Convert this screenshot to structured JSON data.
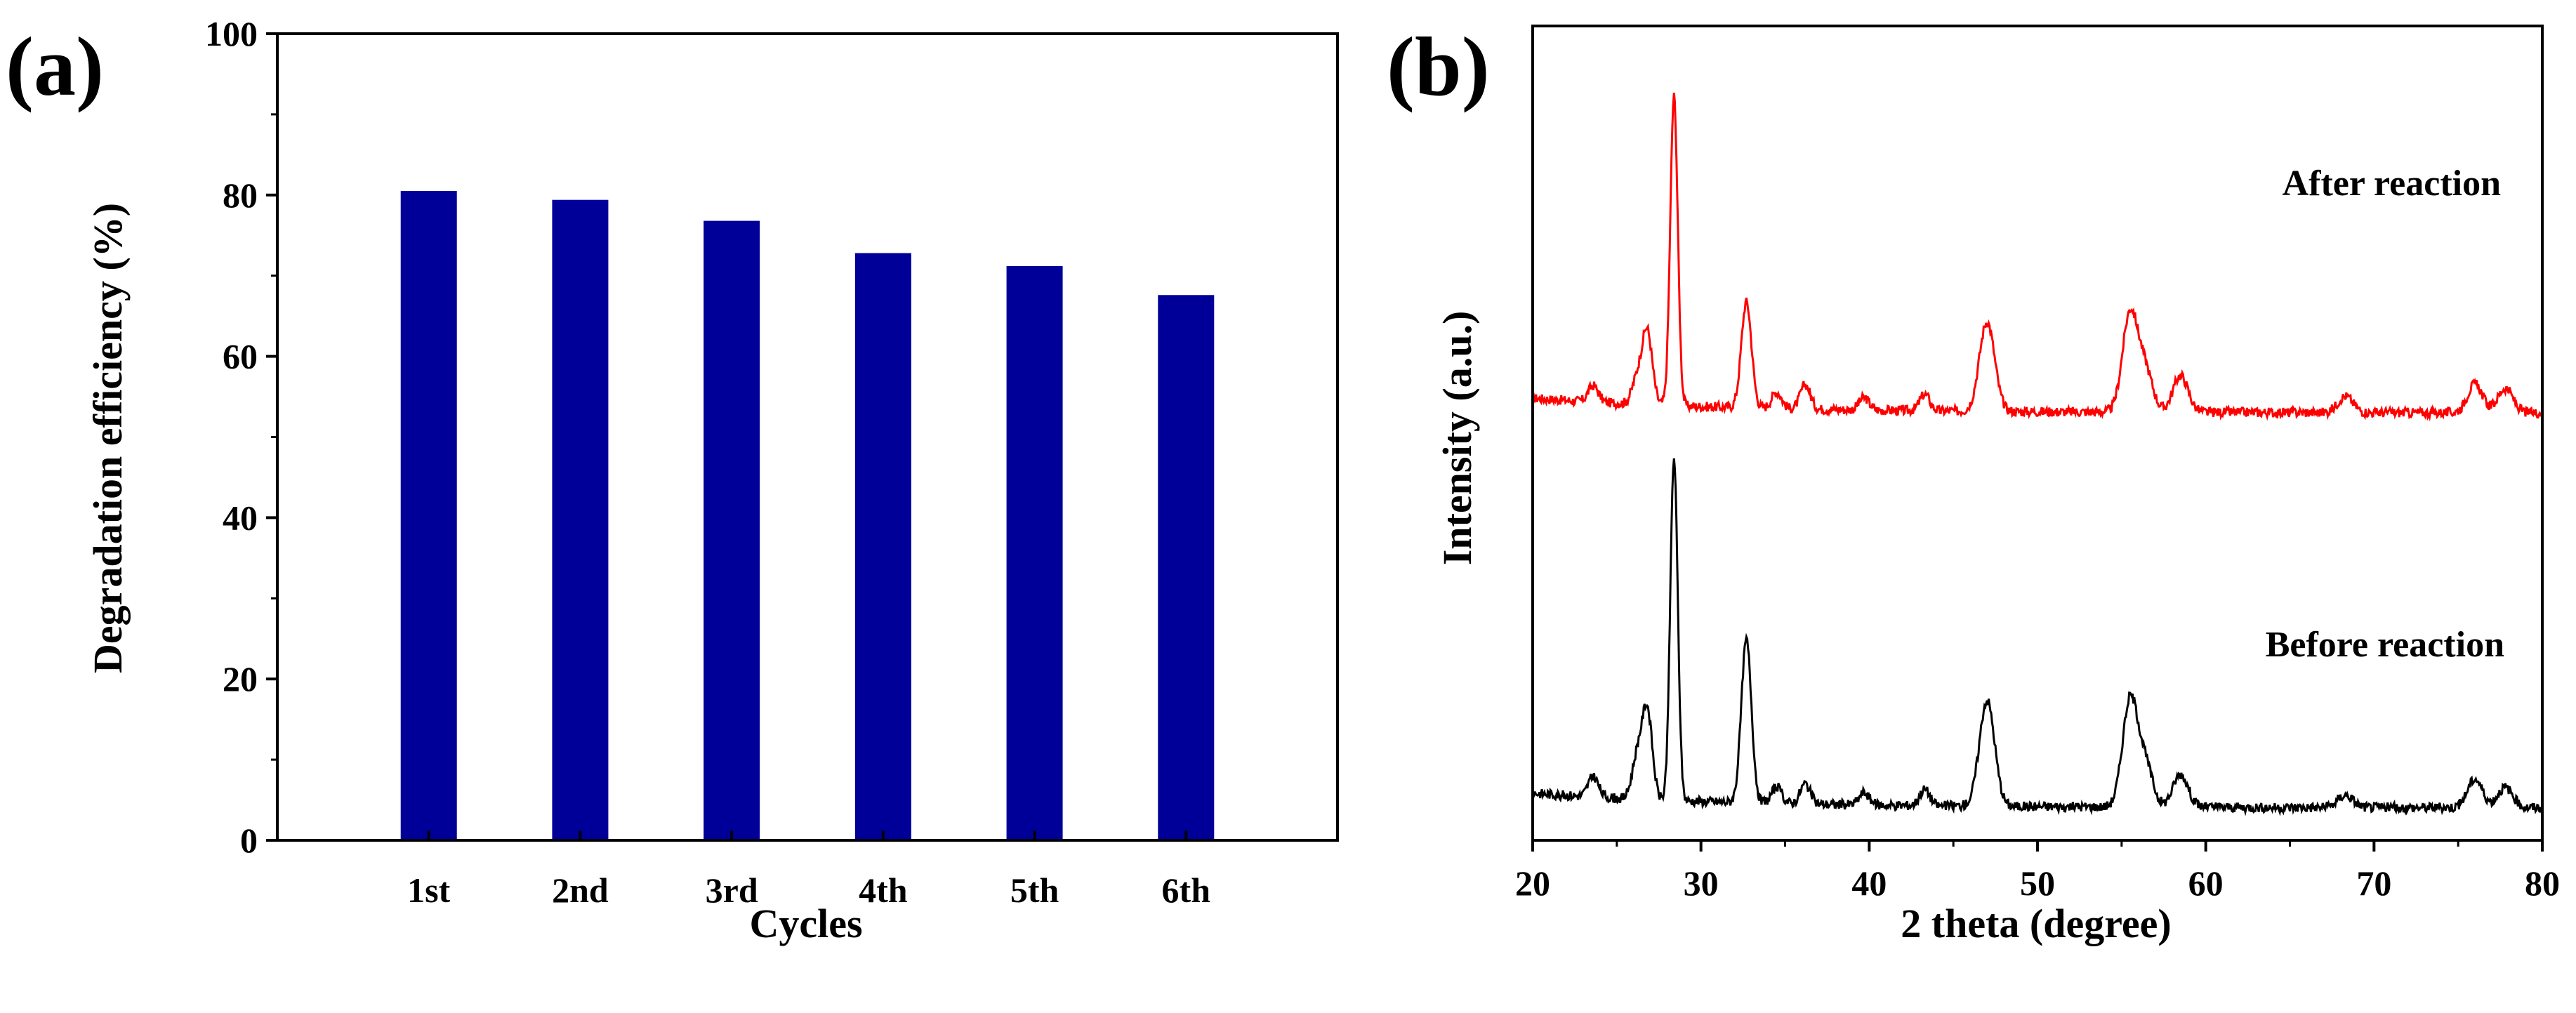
{
  "chart_data": [
    {
      "type": "bar",
      "panel_label": "(a)",
      "xlabel": "Cycles",
      "ylabel": "Degradation efficiency (%)",
      "categories": [
        "1st",
        "2nd",
        "3rd",
        "4th",
        "5th",
        "6th"
      ],
      "values": [
        80.5,
        79.4,
        76.8,
        72.8,
        71.2,
        67.6
      ],
      "ylim": [
        0,
        100
      ],
      "yticks": [
        0,
        20,
        40,
        60,
        80,
        100
      ],
      "ytick_labels": [
        "0",
        "20",
        "40",
        "60",
        "80",
        "100"
      ],
      "grid": false,
      "colors": {
        "bar": "#000099",
        "axis": "#000000"
      }
    },
    {
      "type": "line",
      "panel_label": "(b)",
      "xlabel": "2 theta (degree)",
      "ylabel": "Intensity (a.u.)",
      "xlim": [
        20,
        80
      ],
      "xticks": [
        20,
        30,
        40,
        50,
        60,
        70,
        80
      ],
      "xtick_labels": [
        "20",
        "30",
        "40",
        "50",
        "60",
        "70",
        "80"
      ],
      "ylim": [
        0,
        1
      ],
      "yticks_shown": false,
      "grid": false,
      "series": [
        {
          "name": "After reaction",
          "color": "#ff0000",
          "baseline": 0.525,
          "peaks": [
            [
              23.6,
              0.02
            ],
            [
              26.2,
              0.03
            ],
            [
              26.8,
              0.09
            ],
            [
              28.4,
              0.38
            ],
            [
              32.7,
              0.13
            ],
            [
              34.5,
              0.02
            ],
            [
              36.2,
              0.03
            ],
            [
              39.7,
              0.015
            ],
            [
              43.3,
              0.02
            ],
            [
              47.0,
              0.11
            ],
            [
              55.5,
              0.12
            ],
            [
              56.4,
              0.05
            ],
            [
              58.5,
              0.045
            ],
            [
              68.3,
              0.02
            ],
            [
              76.0,
              0.035
            ],
            [
              77.8,
              0.03
            ]
          ]
        },
        {
          "name": "Before reaction",
          "color": "#000000",
          "baseline": 0.04,
          "peaks": [
            [
              23.6,
              0.025
            ],
            [
              26.2,
              0.05
            ],
            [
              26.8,
              0.11
            ],
            [
              28.4,
              0.42
            ],
            [
              32.7,
              0.2
            ],
            [
              34.5,
              0.02
            ],
            [
              36.2,
              0.025
            ],
            [
              39.7,
              0.015
            ],
            [
              43.3,
              0.02
            ],
            [
              47.0,
              0.13
            ],
            [
              55.5,
              0.13
            ],
            [
              56.4,
              0.05
            ],
            [
              58.5,
              0.04
            ],
            [
              68.3,
              0.015
            ],
            [
              76.0,
              0.035
            ],
            [
              77.8,
              0.025
            ]
          ]
        }
      ]
    }
  ]
}
